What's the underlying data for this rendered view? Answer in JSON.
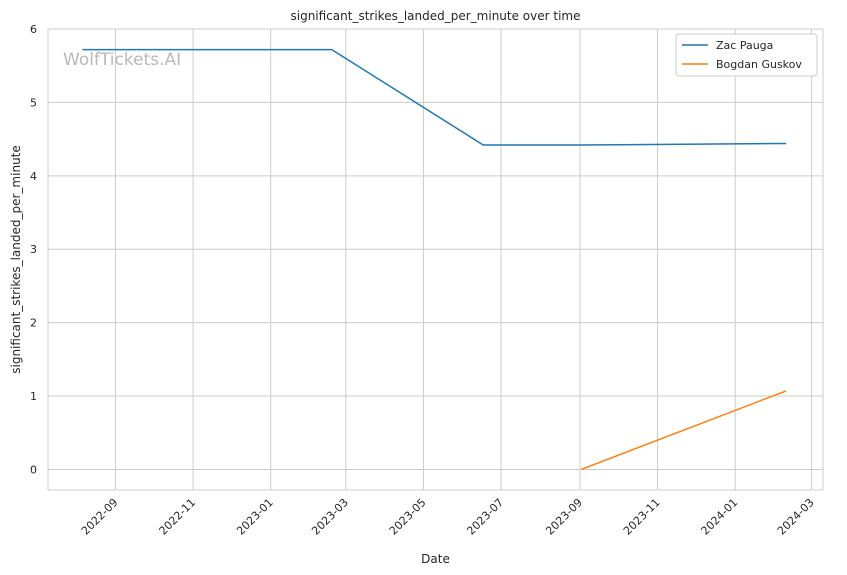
{
  "chart_data": {
    "type": "line",
    "title": "significant_strikes_landed_per_minute over time",
    "xlabel": "Date",
    "ylabel": "significant_strikes_landed_per_minute",
    "watermark": "WolfTickets.AI",
    "xlim": [
      "2022-07-10",
      "2024-03-10"
    ],
    "ylim": [
      -0.28,
      6
    ],
    "x_ticks": [
      "2022-09",
      "2022-11",
      "2023-01",
      "2023-03",
      "2023-05",
      "2023-07",
      "2023-09",
      "2023-11",
      "2024-01",
      "2024-03"
    ],
    "y_ticks": [
      0,
      1,
      2,
      3,
      4,
      5,
      6
    ],
    "grid": true,
    "legend_position": "top-right",
    "series": [
      {
        "name": "Zac Pauga",
        "color": "#1f77b4",
        "points": [
          {
            "x": "2022-08-06",
            "y": 5.72
          },
          {
            "x": "2023-02-18",
            "y": 5.72
          },
          {
            "x": "2023-06-17",
            "y": 4.42
          },
          {
            "x": "2023-09-02",
            "y": 4.42
          },
          {
            "x": "2024-02-10",
            "y": 4.44
          }
        ]
      },
      {
        "name": "Bogdan Guskov",
        "color": "#ff7f0e",
        "points": [
          {
            "x": "2023-09-02",
            "y": 0.0
          },
          {
            "x": "2024-02-10",
            "y": 1.07
          }
        ]
      }
    ]
  }
}
